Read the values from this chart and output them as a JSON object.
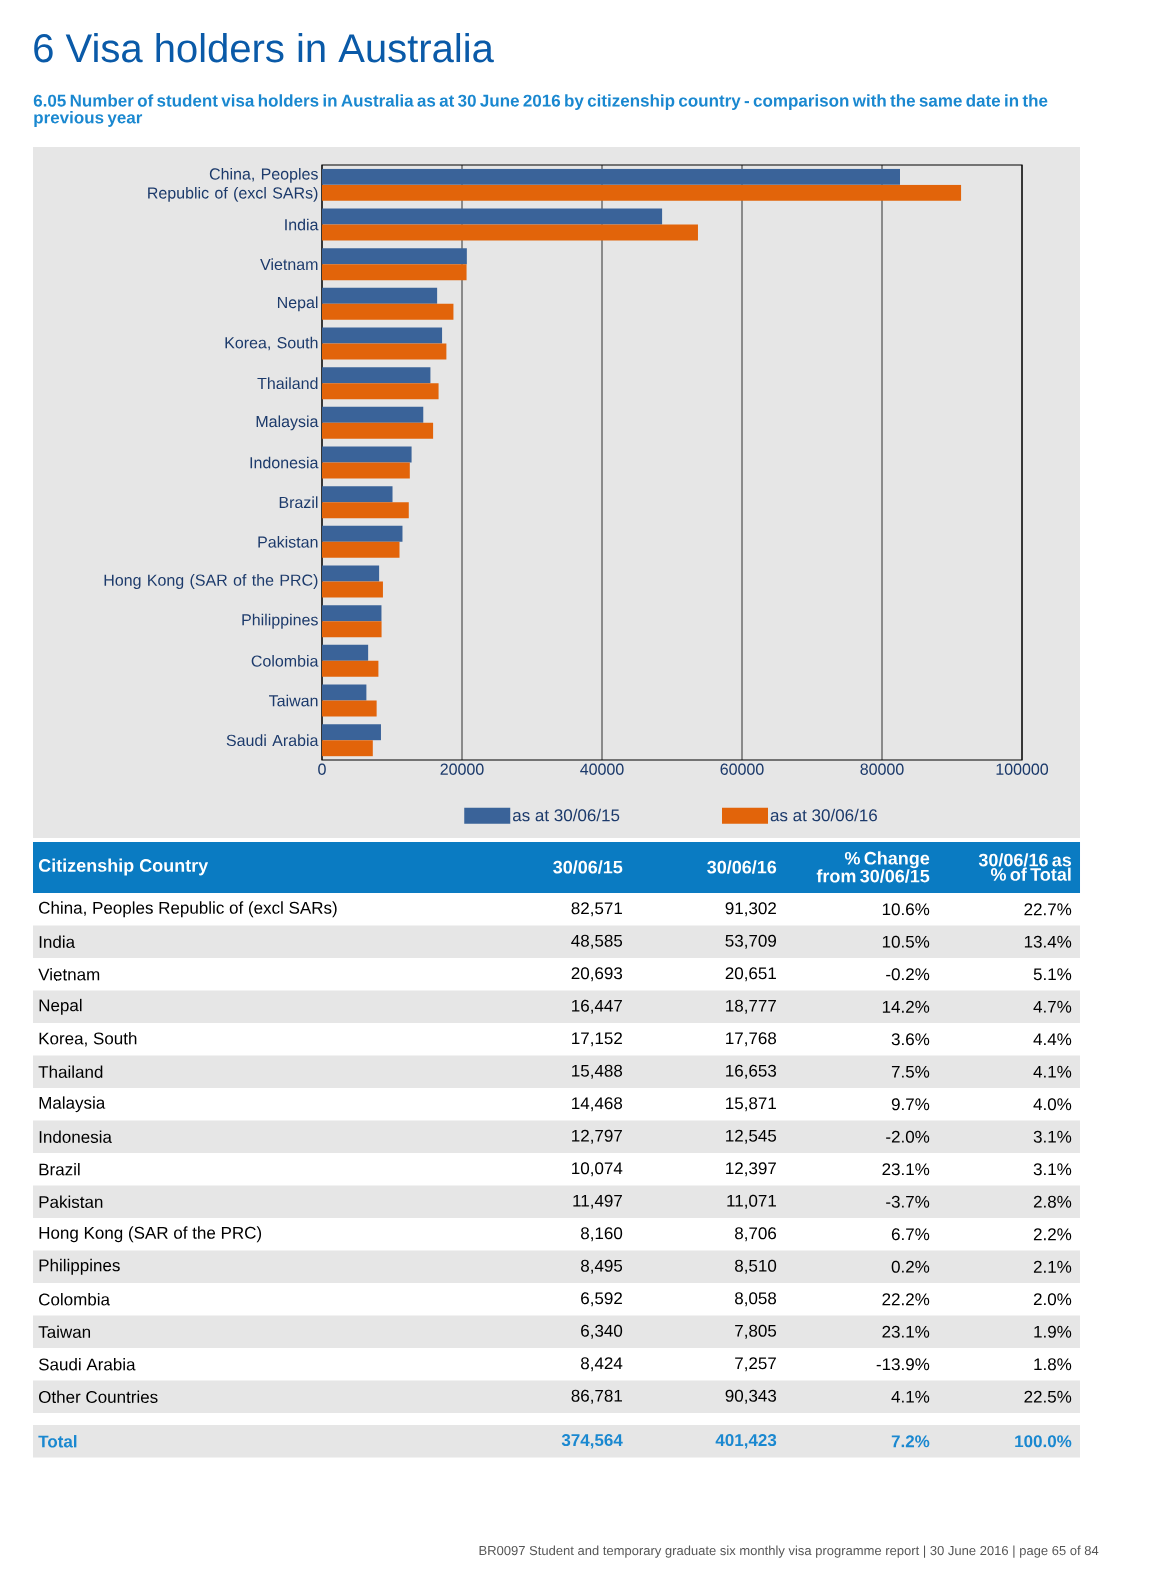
{
  "chart_data": [
    {
      "type": "bar",
      "orientation": "horizontal",
      "title": "6 Visa holders in Australia",
      "subtitle": "6.05 Number of student visa holders in Australia as at 30 June 2016 by citizenship country - comparison with the same date in the previous year",
      "categories": [
        "China, Peoples Republic of (excl SARs)",
        "India",
        "Vietnam",
        "Nepal",
        "Korea, South",
        "Thailand",
        "Malaysia",
        "Indonesia",
        "Brazil",
        "Pakistan",
        "Hong Kong (SAR of the PRC)",
        "Philippines",
        "Colombia",
        "Taiwan",
        "Saudi Arabia"
      ],
      "series": [
        {
          "name": "as at 30/06/15",
          "color": "#3a6399",
          "values": [
            82571,
            48585,
            20693,
            16447,
            17152,
            15488,
            14468,
            12797,
            10074,
            11497,
            8160,
            8495,
            6592,
            6340,
            8424
          ]
        },
        {
          "name": "as at 30/06/16",
          "color": "#e2640a",
          "values": [
            91302,
            53709,
            20651,
            18777,
            17768,
            16653,
            15871,
            12545,
            12397,
            11071,
            8706,
            8510,
            8058,
            7805,
            7257
          ]
        }
      ],
      "xlim": [
        0,
        100000
      ],
      "xticks": [
        0,
        20000,
        40000,
        60000,
        80000,
        100000
      ],
      "grid": "x",
      "legend": "bottom",
      "annotations": [
        "BR0097 Student and temporary graduate six monthly visa programme report  |  30 June 2016  |  page 65 of 84"
      ]
    },
    {
      "type": "other",
      "categories": [
        "Citizenship Country",
        "30/06/15",
        "30/06/16",
        "% Change from 30/06/15",
        "30/06/16 as % of Total"
      ],
      "annotations": [
        "China, Peoples Republic of (excl SARs)",
        "82,571",
        "91,302",
        "10.6%",
        "22.7%",
        "India",
        "48,585",
        "53,709",
        "10.5%",
        "13.4%",
        "Vietnam",
        "20,693",
        "20,651",
        "-0.2%",
        "5.1%",
        "Nepal",
        "16,447",
        "18,777",
        "14.2%",
        "4.7%",
        "Korea, South",
        "17,152",
        "17,768",
        "3.6%",
        "4.4%",
        "Thailand",
        "15,488",
        "16,653",
        "7.5%",
        "4.1%",
        "Malaysia",
        "14,468",
        "15,871",
        "9.7%",
        "4.0%",
        "Indonesia",
        "12,797",
        "12,545",
        "-2.0%",
        "3.1%",
        "Brazil",
        "10,074",
        "12,397",
        "23.1%",
        "3.1%",
        "Pakistan",
        "11,497",
        "11,071",
        "-3.7%",
        "2.8%",
        "Hong Kong (SAR of the PRC)",
        "8,160",
        "8,706",
        "6.7%",
        "2.2%",
        "Philippines",
        "8,495",
        "8,510",
        "0.2%",
        "2.1%",
        "Colombia",
        "6,592",
        "8,058",
        "22.2%",
        "2.0%",
        "Taiwan",
        "6,340",
        "7,805",
        "23.1%",
        "1.9%",
        "Saudi Arabia",
        "8,424",
        "7,257",
        "-13.9%",
        "1.8%",
        "Other Countries",
        "86,781",
        "90,343",
        "4.1%",
        "22.5%",
        "Total",
        "374,564",
        "401,423",
        "7.2%",
        "100.0%"
      ]
    }
  ]
}
